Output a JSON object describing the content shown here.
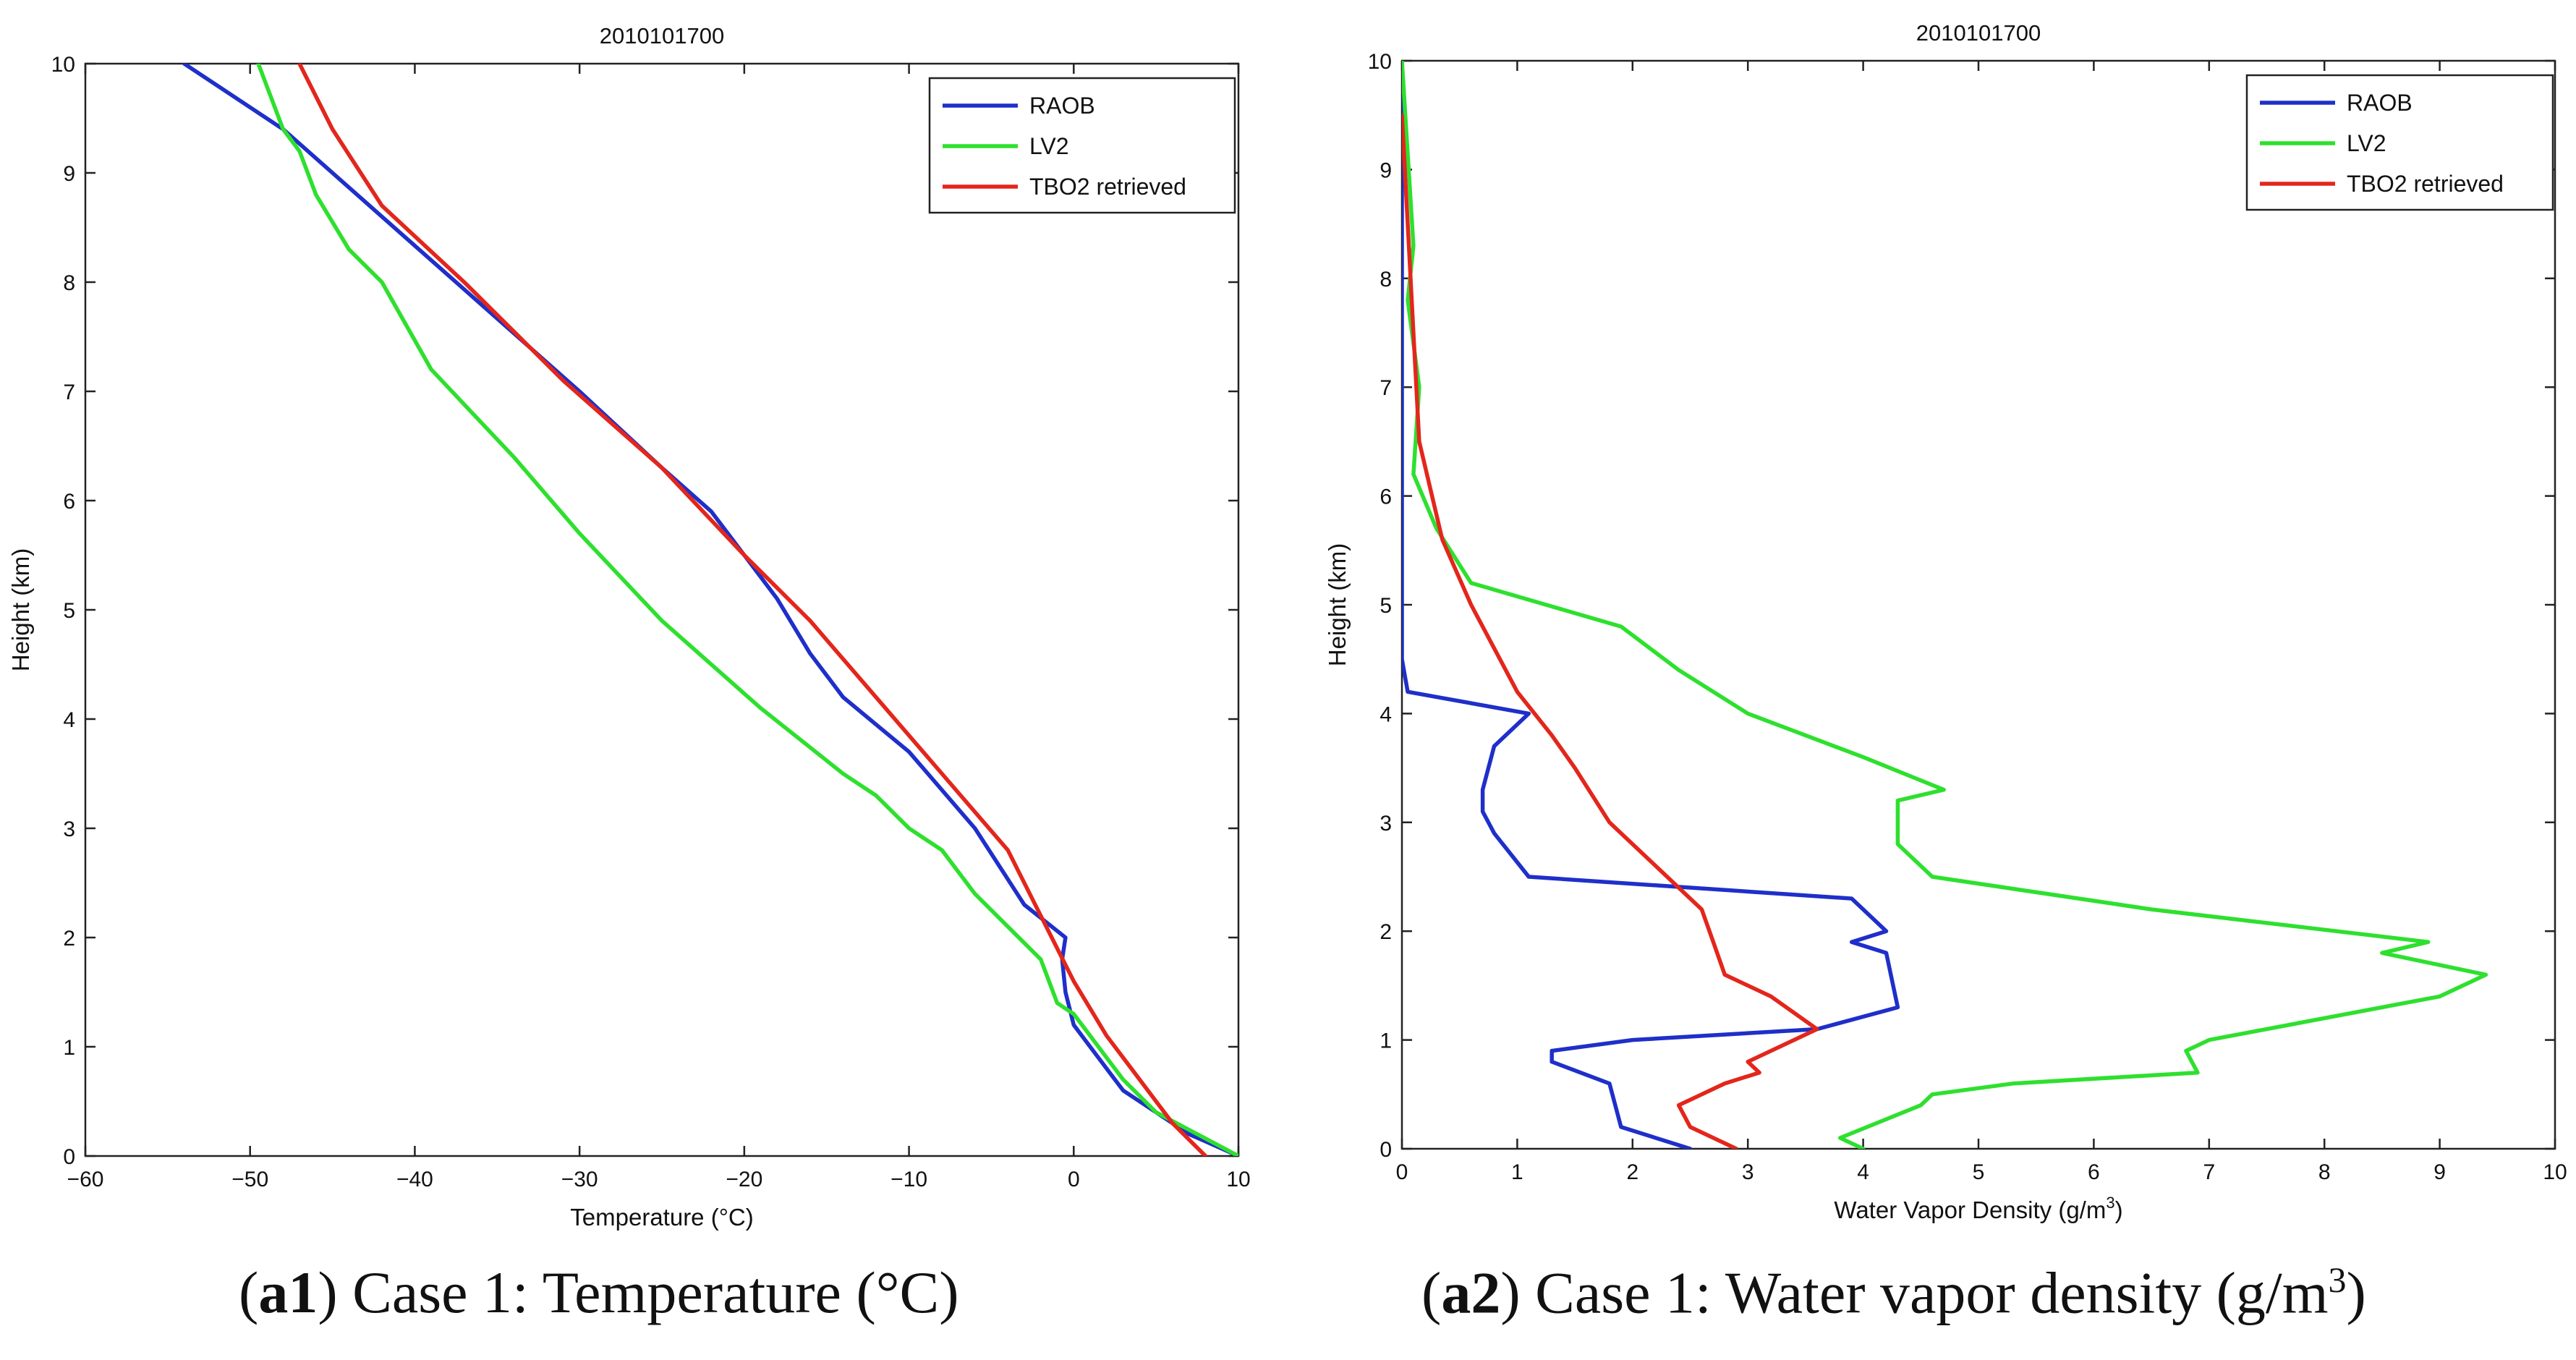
{
  "captions": [
    {
      "label": "a1",
      "text": "Case 1: Temperature (°C)"
    },
    {
      "label": "a2",
      "text": "Case 1: Water vapor density (g/m",
      "sup": "3",
      "close": ")"
    }
  ],
  "chart_data": [
    {
      "type": "line",
      "title": "2010101700",
      "xlabel": "Temperature (°C)",
      "ylabel": "Height (km)",
      "xlim": [
        -60,
        10
      ],
      "ylim": [
        0,
        10
      ],
      "xticks": [
        -60,
        -50,
        -40,
        -30,
        -20,
        -10,
        0,
        10
      ],
      "xtick_labels": [
        "−60",
        "−50",
        "−40",
        "−30",
        "−20",
        "−10",
        "0",
        "10"
      ],
      "yticks": [
        0,
        1,
        2,
        3,
        4,
        5,
        6,
        7,
        8,
        9,
        10
      ],
      "ytick_labels": [
        "0",
        "1",
        "2",
        "3",
        "4",
        "5",
        "6",
        "7",
        "8",
        "9",
        "10"
      ],
      "legend_position": "top-right",
      "series": [
        {
          "name": "RAOB",
          "color": "#1f2fc9",
          "x": [
            10,
            7,
            5,
            3,
            1.5,
            0,
            -0.5,
            -0.7,
            -0.5,
            -3,
            -6,
            -10,
            -14,
            -16,
            -18,
            -20,
            -22,
            -25,
            -30,
            -36,
            -42,
            -48,
            -52,
            -54
          ],
          "y": [
            0,
            0.2,
            0.4,
            0.6,
            0.9,
            1.2,
            1.5,
            1.8,
            2.0,
            2.3,
            3.0,
            3.7,
            4.2,
            4.6,
            5.1,
            5.5,
            5.9,
            6.3,
            7.0,
            7.8,
            8.6,
            9.4,
            9.8,
            10
          ]
        },
        {
          "name": "LV2",
          "color": "#2ee02e",
          "x": [
            10,
            5,
            3,
            2,
            0,
            -1,
            -1.5,
            -2,
            -4,
            -6,
            -8,
            -10,
            -12,
            -14,
            -19,
            -25,
            -30,
            -34,
            -39,
            -42,
            -44,
            -46,
            -47,
            -48,
            -48.5,
            -49,
            -49.5
          ],
          "y": [
            0,
            0.4,
            0.7,
            0.9,
            1.3,
            1.4,
            1.6,
            1.8,
            2.1,
            2.4,
            2.8,
            3.0,
            3.3,
            3.5,
            4.1,
            4.9,
            5.7,
            6.4,
            7.2,
            8.0,
            8.3,
            8.8,
            9.2,
            9.4,
            9.6,
            9.8,
            10
          ]
        },
        {
          "name": "TBO2 retrieved",
          "color": "#e3261c",
          "x": [
            8,
            6,
            4,
            2,
            0,
            -2,
            -4,
            -8,
            -12,
            -16,
            -20,
            -25,
            -31,
            -37,
            -42,
            -45,
            -47
          ],
          "y": [
            0,
            0.3,
            0.7,
            1.1,
            1.6,
            2.2,
            2.8,
            3.5,
            4.2,
            4.9,
            5.5,
            6.3,
            7.1,
            8.0,
            8.7,
            9.4,
            10
          ]
        }
      ]
    },
    {
      "type": "line",
      "title": "2010101700",
      "xlabel": "Water Vapor Density (g/m",
      "xlabel_sup": "3",
      "xlabel_close": ")",
      "ylabel": "Height (km)",
      "xlim": [
        0,
        10
      ],
      "ylim": [
        0,
        10
      ],
      "xticks": [
        0,
        1,
        2,
        3,
        4,
        5,
        6,
        7,
        8,
        9,
        10
      ],
      "xtick_labels": [
        "0",
        "1",
        "2",
        "3",
        "4",
        "5",
        "6",
        "7",
        "8",
        "9",
        "10"
      ],
      "yticks": [
        0,
        1,
        2,
        3,
        4,
        5,
        6,
        7,
        8,
        9,
        10
      ],
      "ytick_labels": [
        "0",
        "1",
        "2",
        "3",
        "4",
        "5",
        "6",
        "7",
        "8",
        "9",
        "10"
      ],
      "legend_position": "top-right",
      "series": [
        {
          "name": "RAOB",
          "color": "#1f2fc9",
          "x": [
            2.5,
            1.9,
            1.8,
            1.3,
            1.3,
            2.0,
            3.6,
            4.3,
            4.2,
            3.9,
            4.2,
            3.9,
            1.1,
            0.8,
            0.7,
            0.7,
            0.8,
            1.1,
            0.05,
            0.0,
            0.0,
            0.0,
            0.0
          ],
          "y": [
            0,
            0.2,
            0.6,
            0.8,
            0.9,
            1.0,
            1.1,
            1.3,
            1.8,
            1.9,
            2.0,
            2.3,
            2.5,
            2.9,
            3.1,
            3.3,
            3.7,
            4.0,
            4.2,
            4.5,
            5.5,
            7.0,
            10
          ]
        },
        {
          "name": "LV2",
          "color": "#2ee02e",
          "x": [
            4.0,
            3.8,
            4.5,
            4.6,
            5.3,
            6.9,
            6.8,
            7.0,
            9.0,
            9.4,
            8.5,
            8.9,
            6.5,
            4.6,
            4.3,
            4.3,
            4.7,
            4.0,
            3.0,
            2.4,
            1.9,
            0.6,
            0.3,
            0.1,
            0.15,
            0.05,
            0.1,
            0.0
          ],
          "y": [
            0,
            0.1,
            0.4,
            0.5,
            0.6,
            0.7,
            0.9,
            1.0,
            1.4,
            1.6,
            1.8,
            1.9,
            2.2,
            2.5,
            2.8,
            3.2,
            3.3,
            3.6,
            4.0,
            4.4,
            4.8,
            5.2,
            5.7,
            6.2,
            7.0,
            7.8,
            8.3,
            10
          ]
        },
        {
          "name": "TBO2 retrieved",
          "color": "#e3261c",
          "x": [
            2.9,
            2.5,
            2.4,
            2.8,
            3.1,
            3.0,
            3.4,
            3.6,
            3.2,
            2.8,
            2.7,
            2.6,
            2.0,
            1.8,
            1.5,
            1.3,
            1.0,
            0.6,
            0.35,
            0.15,
            0.1,
            0.05,
            0.0
          ],
          "y": [
            0,
            0.2,
            0.4,
            0.6,
            0.7,
            0.8,
            1.0,
            1.1,
            1.4,
            1.6,
            1.9,
            2.2,
            2.8,
            3.0,
            3.5,
            3.8,
            4.2,
            5.0,
            5.6,
            6.5,
            7.5,
            8.5,
            9.5
          ]
        }
      ]
    }
  ]
}
